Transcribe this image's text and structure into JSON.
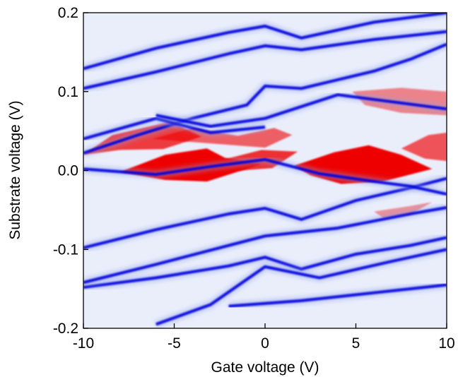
{
  "chart_data": {
    "type": "heatmap",
    "title": "",
    "xlabel": "Gate voltage (V)",
    "ylabel": "Substrate voltage (V)",
    "xlim": [
      -10,
      10
    ],
    "ylim": [
      -0.2,
      0.2
    ],
    "x_ticks": [
      -10,
      -5,
      0,
      5,
      10
    ],
    "x_tick_labels": [
      "-10",
      "-5",
      "0",
      "5",
      "10"
    ],
    "y_ticks": [
      -0.2,
      -0.1,
      0.0,
      0.1,
      0.2
    ],
    "y_tick_labels": [
      "-0.2",
      "-0.1",
      "0.0",
      "0.1",
      "0.2"
    ],
    "colormap": {
      "negative": "#0000dd",
      "zero": "#ffffff",
      "positive": "#ee0000"
    },
    "features": {
      "negative_lines": [
        {
          "x": [
            -10,
            -6,
            -2,
            0,
            2,
            6,
            10
          ],
          "y": [
            0.129,
            0.155,
            0.175,
            0.183,
            0.168,
            0.188,
            0.2
          ]
        },
        {
          "x": [
            -10,
            -6,
            -2,
            0,
            2,
            6,
            10
          ],
          "y": [
            0.104,
            0.125,
            0.148,
            0.158,
            0.153,
            0.166,
            0.176
          ]
        },
        {
          "x": [
            -10,
            -7,
            -4,
            -1,
            0,
            2,
            4,
            6,
            8,
            10
          ],
          "y": [
            0.022,
            0.045,
            0.066,
            0.083,
            0.107,
            0.104,
            0.115,
            0.126,
            0.141,
            0.16
          ]
        },
        {
          "x": [
            -10,
            -6,
            -3,
            0
          ],
          "y": [
            0.04,
            0.066,
            0.048,
            0.055
          ]
        },
        {
          "x": [
            -6,
            -3,
            0,
            4,
            8,
            10
          ],
          "y": [
            0.07,
            0.056,
            0.066,
            0.096,
            0.084,
            0.078
          ]
        },
        {
          "x": [
            -10,
            -6,
            -2,
            0,
            2,
            5,
            8,
            10
          ],
          "y": [
            -0.098,
            -0.075,
            -0.055,
            -0.048,
            -0.062,
            -0.038,
            -0.022,
            -0.01
          ]
        },
        {
          "x": [
            -10,
            -6,
            -2,
            0,
            2,
            5,
            8,
            10
          ],
          "y": [
            -0.148,
            -0.136,
            -0.121,
            -0.11,
            -0.125,
            -0.106,
            -0.095,
            -0.085
          ]
        },
        {
          "x": [
            -10,
            -6,
            -2,
            0,
            4,
            8,
            10
          ],
          "y": [
            -0.142,
            -0.119,
            -0.095,
            -0.083,
            -0.073,
            -0.055,
            -0.047
          ]
        },
        {
          "x": [
            -6,
            -3,
            0,
            3,
            7,
            10
          ],
          "y": [
            -0.195,
            -0.17,
            -0.122,
            -0.136,
            -0.115,
            -0.1
          ]
        },
        {
          "x": [
            -2,
            2,
            6,
            10
          ],
          "y": [
            -0.172,
            -0.165,
            -0.155,
            -0.145
          ]
        },
        {
          "x": [
            -10,
            -6,
            -3,
            0,
            3,
            6,
            8,
            10
          ],
          "y": [
            0.002,
            -0.005,
            0.005,
            0.014,
            -0.004,
            -0.014,
            -0.02,
            -0.03
          ]
        }
      ],
      "positive_regions": [
        {
          "value": 0.75,
          "points": [
            [
              -10,
              0.02
            ],
            [
              -8.4,
              0.045
            ],
            [
              -5.2,
              0.062
            ],
            [
              -3.5,
              0.043
            ],
            [
              -5.6,
              0.027
            ],
            [
              -8,
              0.026
            ]
          ]
        },
        {
          "value": 0.6,
          "points": [
            [
              -6.2,
              0.04
            ],
            [
              -4,
              0.054
            ],
            [
              -1.5,
              0.044
            ],
            [
              0.5,
              0.054
            ],
            [
              1.5,
              0.045
            ],
            [
              0,
              0.029
            ]
          ]
        },
        {
          "value": 1.0,
          "points": [
            [
              -8,
              -0.002
            ],
            [
              -5.5,
              0.02
            ],
            [
              -3.2,
              0.028
            ],
            [
              -2.2,
              0.016
            ],
            [
              -0.2,
              0.008
            ],
            [
              -3.2,
              -0.014
            ],
            [
              -5.5,
              -0.012
            ]
          ]
        },
        {
          "value": 0.8,
          "points": [
            [
              -2.6,
              0.012
            ],
            [
              -0.2,
              0.026
            ],
            [
              1.8,
              0.024
            ],
            [
              0.4,
              0.003
            ],
            [
              -1.4,
              0.0
            ]
          ]
        },
        {
          "value": 1.0,
          "points": [
            [
              1.6,
              0.006
            ],
            [
              3.8,
              0.023
            ],
            [
              5.7,
              0.032
            ],
            [
              7.5,
              0.02
            ],
            [
              9.2,
              0.002
            ],
            [
              6.5,
              -0.014
            ],
            [
              4.2,
              -0.017
            ],
            [
              2.5,
              -0.006
            ]
          ]
        },
        {
          "value": 0.65,
          "points": [
            [
              7.5,
              0.028
            ],
            [
              9,
              0.045
            ],
            [
              10,
              0.048
            ],
            [
              10,
              0.012
            ],
            [
              8.8,
              0.015
            ]
          ]
        },
        {
          "value": 0.45,
          "points": [
            [
              4.8,
              0.1
            ],
            [
              7.5,
              0.105
            ],
            [
              10,
              0.1
            ],
            [
              10,
              0.07
            ],
            [
              7.5,
              0.073
            ],
            [
              5.5,
              0.083
            ]
          ]
        },
        {
          "value": 0.4,
          "points": [
            [
              6,
              -0.052
            ],
            [
              8,
              -0.045
            ],
            [
              9.2,
              -0.04
            ],
            [
              8,
              -0.056
            ],
            [
              6.5,
              -0.06
            ]
          ]
        }
      ]
    }
  }
}
